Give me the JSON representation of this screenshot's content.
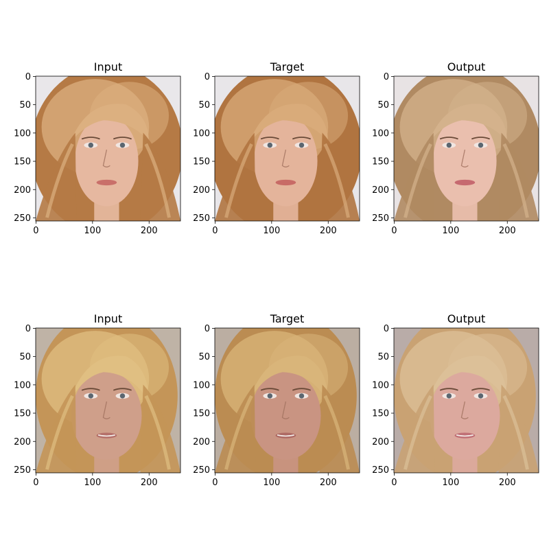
{
  "figure": {
    "background": "#ffffff",
    "panels": [
      {
        "title": "Input",
        "image_description": "woman-blonde-wavy-hair",
        "skin": "#e6b8a0",
        "hair": "#b57a45",
        "hair_light": "#dcb080",
        "bg": "#e9e7ea",
        "lips": "#c9706a"
      },
      {
        "title": "Target",
        "image_description": "woman-blonde-wavy-hair",
        "skin": "#e4b49b",
        "hair": "#b07440",
        "hair_light": "#d9ab7a",
        "bg": "#e8e6e9",
        "lips": "#c86b66"
      },
      {
        "title": "Output",
        "image_description": "woman-blonde-wavy-hair",
        "skin": "#eabfae",
        "hair": "#b08a62",
        "hair_light": "#d4b28c",
        "bg": "#e8e3e4",
        "lips": "#c66a70"
      },
      {
        "title": "Input",
        "image_description": "older-woman-blonde-hair",
        "skin": "#cf9f8a",
        "hair": "#c49558",
        "hair_light": "#e0bf82",
        "bg": "#bfb3a6",
        "lips": "#b5706a"
      },
      {
        "title": "Target",
        "image_description": "older-woman-blonde-hair",
        "skin": "#c99482",
        "hair": "#bb8c52",
        "hair_light": "#d9b57a",
        "bg": "#bbaea2",
        "lips": "#ae6a64"
      },
      {
        "title": "Output",
        "image_description": "older-woman-blonde-hair",
        "skin": "#dca99e",
        "hair": "#c9a273",
        "hair_light": "#dcc098",
        "bg": "#b9aca8",
        "lips": "#c07076"
      }
    ]
  },
  "chart_data": [
    {
      "type": "image",
      "title": "Input",
      "x_ticks": [
        0,
        100,
        200
      ],
      "y_ticks": [
        0,
        50,
        100,
        150,
        200,
        250
      ],
      "xlim": [
        -0.5,
        255.5
      ],
      "ylim": [
        255.5,
        -0.5
      ]
    },
    {
      "type": "image",
      "title": "Target",
      "x_ticks": [
        0,
        100,
        200
      ],
      "y_ticks": [
        0,
        50,
        100,
        150,
        200,
        250
      ],
      "xlim": [
        -0.5,
        255.5
      ],
      "ylim": [
        255.5,
        -0.5
      ]
    },
    {
      "type": "image",
      "title": "Output",
      "x_ticks": [
        0,
        100,
        200
      ],
      "y_ticks": [
        0,
        50,
        100,
        150,
        200,
        250
      ],
      "xlim": [
        -0.5,
        255.5
      ],
      "ylim": [
        255.5,
        -0.5
      ]
    },
    {
      "type": "image",
      "title": "Input",
      "x_ticks": [
        0,
        100,
        200
      ],
      "y_ticks": [
        0,
        50,
        100,
        150,
        200,
        250
      ],
      "xlim": [
        -0.5,
        255.5
      ],
      "ylim": [
        255.5,
        -0.5
      ]
    },
    {
      "type": "image",
      "title": "Target",
      "x_ticks": [
        0,
        100,
        200
      ],
      "y_ticks": [
        0,
        50,
        100,
        150,
        200,
        250
      ],
      "xlim": [
        -0.5,
        255.5
      ],
      "ylim": [
        255.5,
        -0.5
      ]
    },
    {
      "type": "image",
      "title": "Output",
      "x_ticks": [
        0,
        100,
        200
      ],
      "y_ticks": [
        0,
        50,
        100,
        150,
        200,
        250
      ],
      "xlim": [
        -0.5,
        255.5
      ],
      "ylim": [
        255.5,
        -0.5
      ]
    }
  ]
}
